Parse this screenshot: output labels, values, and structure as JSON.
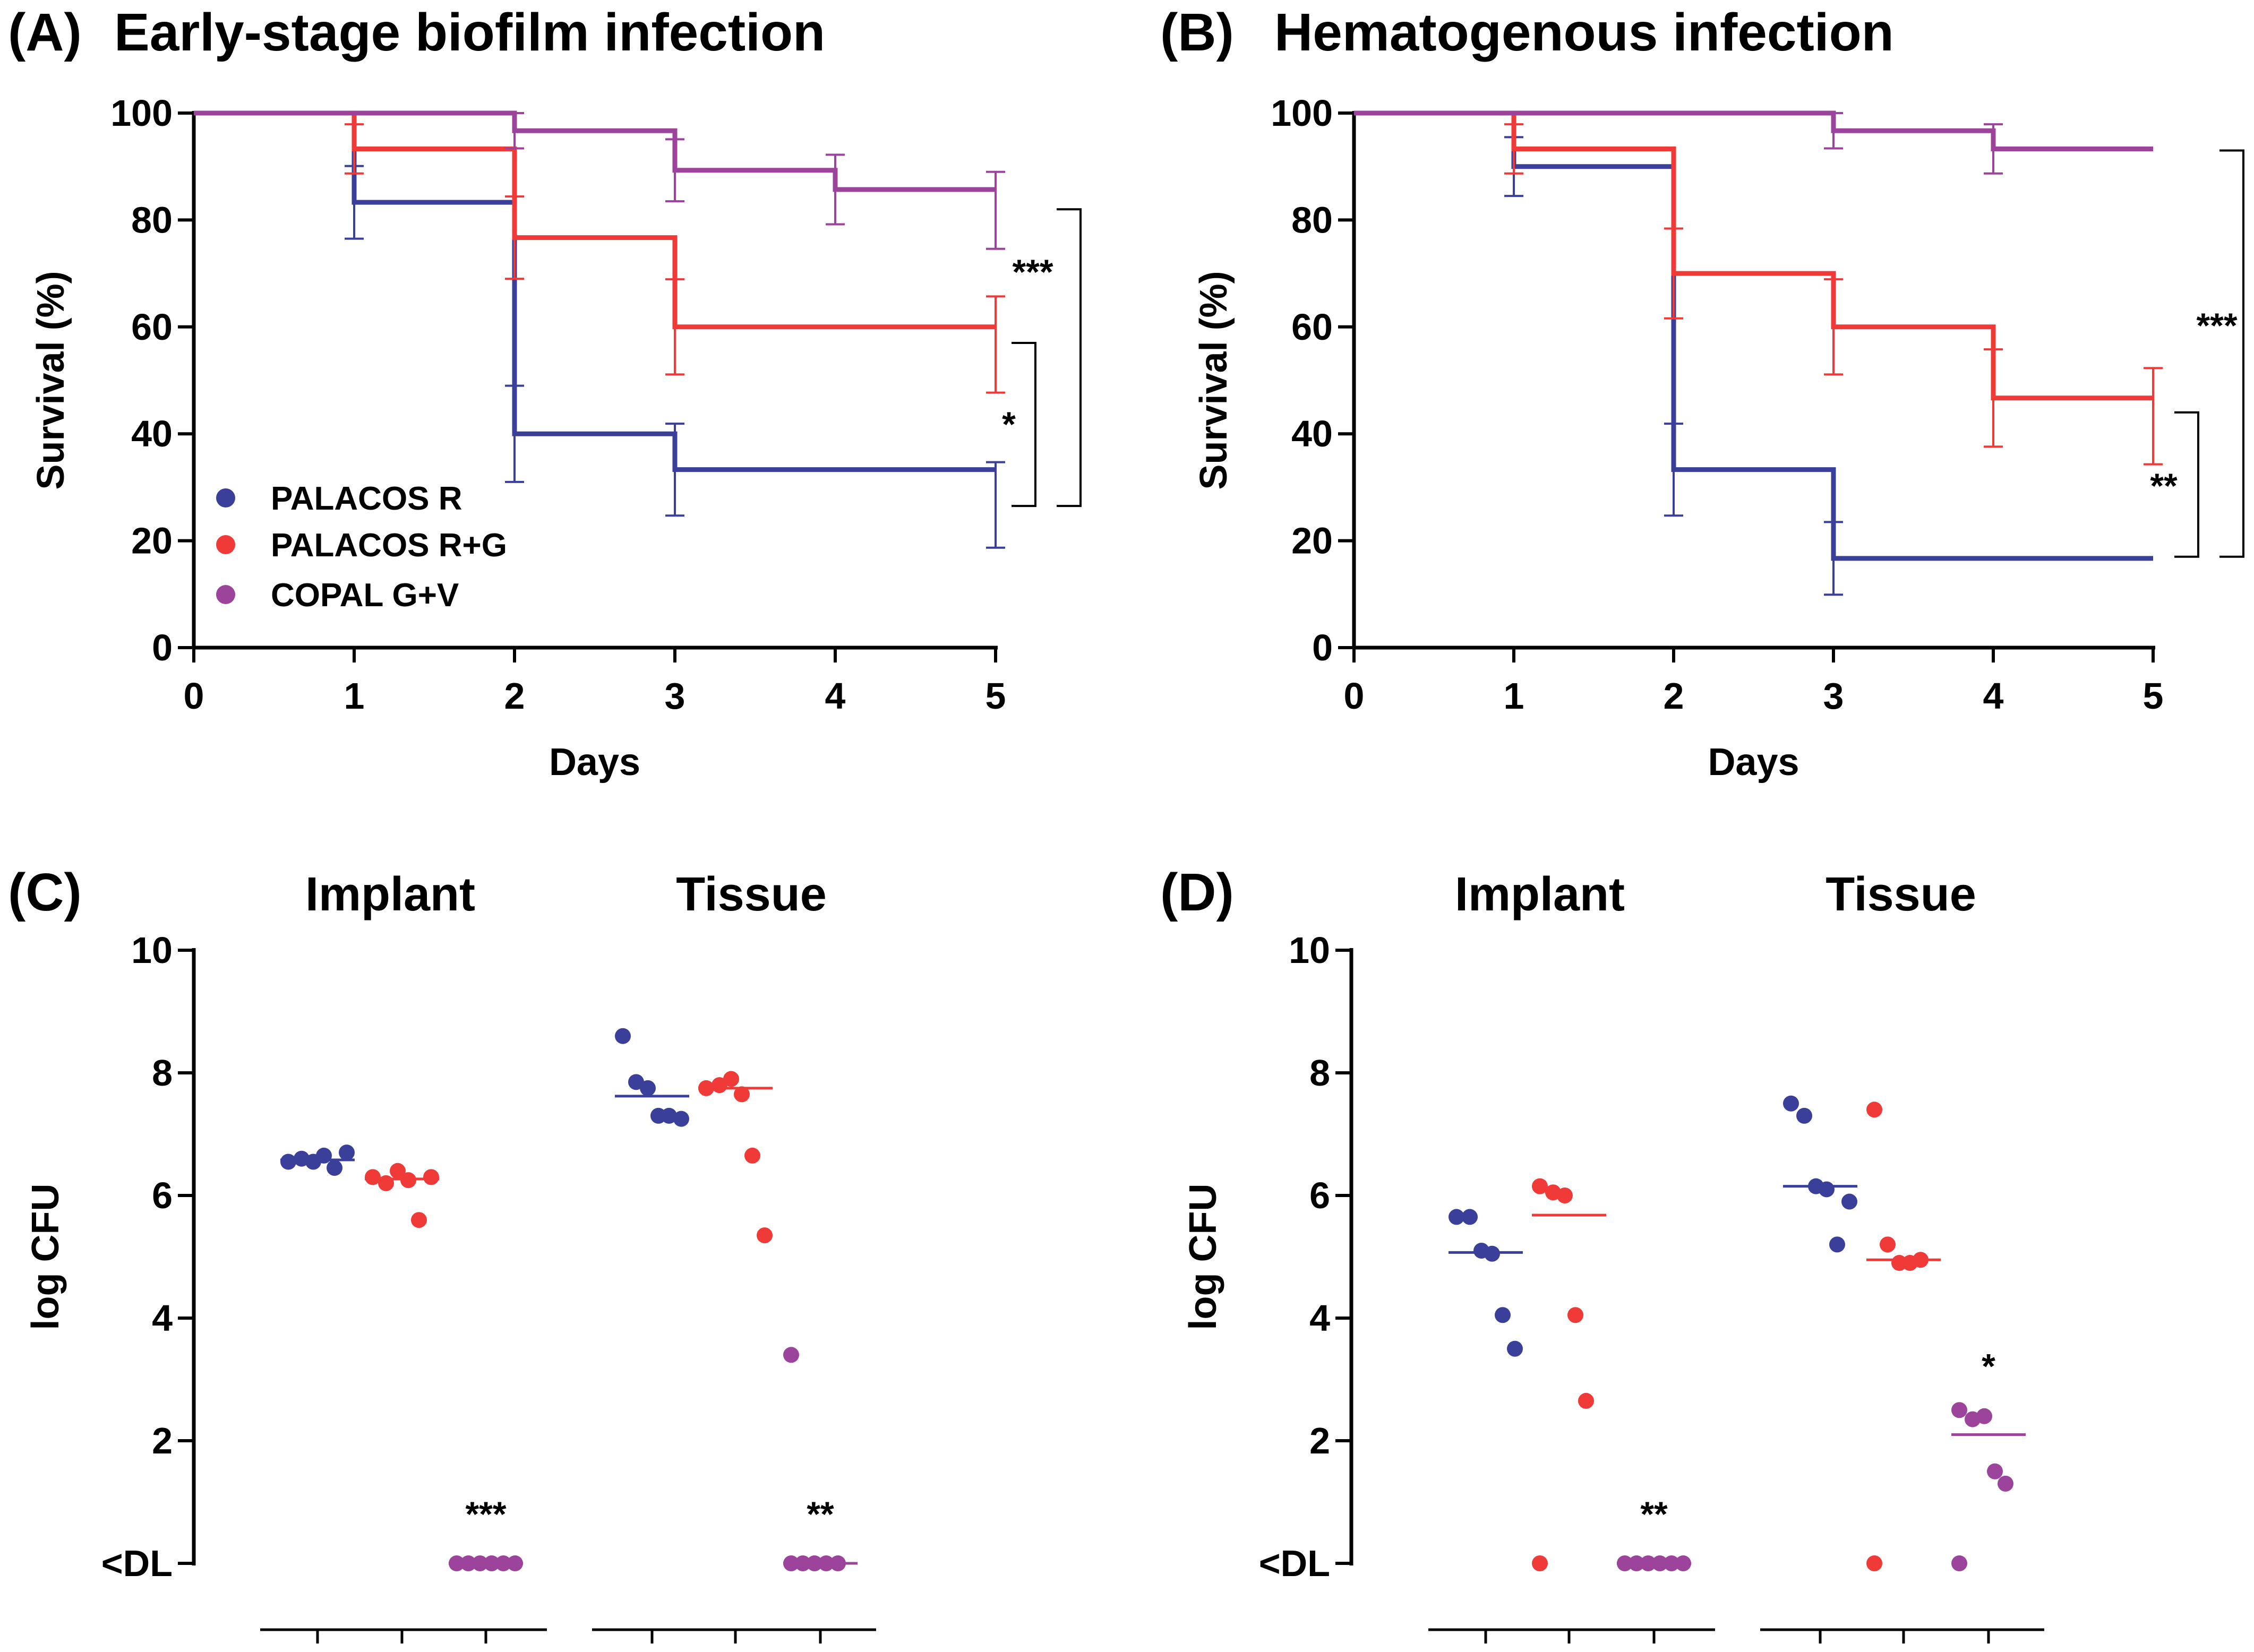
{
  "colors": {
    "palacos_r": "#3a3f9a",
    "palacos_rg": "#f03a38",
    "copal_gv": "#9c449c",
    "axis": "#000000"
  },
  "legend": {
    "palacos_r": "PALACOS R",
    "palacos_rg": "PALACOS R+G",
    "copal_gv": "COPAL G+V"
  },
  "chart_data": [
    {
      "id": "A",
      "type": "line",
      "subtype": "kaplan-meier",
      "label": "(A)",
      "title": "Early-stage biofilm infection",
      "xlabel": "Days",
      "ylabel": "Survival (%)",
      "xlim": [
        0,
        5
      ],
      "ylim": [
        0,
        100
      ],
      "xticks": [
        "0",
        "1",
        "2",
        "3",
        "4",
        "5"
      ],
      "yticks": [
        "0",
        "20",
        "40",
        "60",
        "80",
        "100"
      ],
      "legend_position": "lower-left",
      "series": [
        {
          "name": "PALACOS R",
          "color_key": "palacos_r",
          "steps": [
            [
              0,
              100
            ],
            [
              1,
              83.3
            ],
            [
              2,
              40
            ],
            [
              3,
              33.3
            ],
            [
              5,
              33.3
            ]
          ],
          "error_bars": [
            [
              1,
              83.3,
              6.8
            ],
            [
              2,
              40,
              9
            ],
            [
              3,
              33.3,
              8.6
            ],
            [
              5,
              26.7,
              8
            ]
          ]
        },
        {
          "name": "PALACOS R+G",
          "color_key": "palacos_rg",
          "steps": [
            [
              0,
              100
            ],
            [
              1,
              93.3
            ],
            [
              2,
              76.7
            ],
            [
              3,
              60
            ],
            [
              5,
              60
            ]
          ],
          "error_bars": [
            [
              1,
              93.3,
              4.6
            ],
            [
              2,
              76.7,
              7.7
            ],
            [
              3,
              60,
              8.9
            ],
            [
              5,
              56.7,
              9
            ]
          ]
        },
        {
          "name": "COPAL G+V",
          "color_key": "copal_gv",
          "steps": [
            [
              0,
              100
            ],
            [
              2,
              96.7
            ],
            [
              3,
              89.3
            ],
            [
              4,
              85.7
            ],
            [
              5,
              85.7
            ]
          ],
          "error_bars": [
            [
              2,
              96.7,
              3.3
            ],
            [
              3,
              89.3,
              5.8
            ],
            [
              4,
              85.7,
              6.5
            ],
            [
              5,
              81.8,
              7.2
            ]
          ]
        }
      ],
      "significance": [
        {
          "label": "***",
          "between": [
            "PALACOS R",
            "COPAL G+V"
          ]
        },
        {
          "label": "*",
          "between": [
            "PALACOS R",
            "PALACOS R+G"
          ]
        }
      ]
    },
    {
      "id": "B",
      "type": "line",
      "subtype": "kaplan-meier",
      "label": "(B)",
      "title": "Hematogenous infection",
      "xlabel": "Days",
      "ylabel": "Survival (%)",
      "xlim": [
        0,
        5
      ],
      "ylim": [
        0,
        100
      ],
      "xticks": [
        "0",
        "1",
        "2",
        "3",
        "4",
        "5"
      ],
      "yticks": [
        "0",
        "20",
        "40",
        "60",
        "80",
        "100"
      ],
      "series": [
        {
          "name": "PALACOS R",
          "color_key": "palacos_r",
          "steps": [
            [
              0,
              100
            ],
            [
              1,
              90
            ],
            [
              2,
              33.3
            ],
            [
              3,
              16.7
            ],
            [
              5,
              16.7
            ]
          ],
          "error_bars": [
            [
              1,
              90,
              5.5
            ],
            [
              2,
              33.3,
              8.6
            ],
            [
              3,
              16.7,
              6.8
            ]
          ]
        },
        {
          "name": "PALACOS R+G",
          "color_key": "palacos_rg",
          "steps": [
            [
              0,
              100
            ],
            [
              1,
              93.3
            ],
            [
              2,
              70
            ],
            [
              3,
              60
            ],
            [
              4,
              46.7
            ],
            [
              5,
              46.7
            ]
          ],
          "error_bars": [
            [
              1,
              93.3,
              4.6
            ],
            [
              2,
              70,
              8.4
            ],
            [
              3,
              60,
              8.9
            ],
            [
              4,
              46.7,
              9.1
            ],
            [
              5,
              43.3,
              9
            ]
          ]
        },
        {
          "name": "COPAL G+V",
          "color_key": "copal_gv",
          "steps": [
            [
              0,
              100
            ],
            [
              3,
              96.7
            ],
            [
              4,
              93.3
            ],
            [
              5,
              93.3
            ]
          ],
          "error_bars": [
            [
              3,
              96.7,
              3.3
            ],
            [
              4,
              93.3,
              4.6
            ]
          ]
        }
      ],
      "significance": [
        {
          "label": "***",
          "between": [
            "PALACOS R",
            "COPAL G+V"
          ]
        },
        {
          "label": "**",
          "between": [
            "PALACOS R",
            "PALACOS R+G"
          ]
        }
      ]
    },
    {
      "id": "C",
      "type": "scatter",
      "subtype": "dot-plot",
      "label": "(C)",
      "ylabel": "log CFU",
      "ylim": [
        0,
        10
      ],
      "yticks": [
        {
          "label": "<DL",
          "value": 0
        },
        {
          "label": "2",
          "value": 2
        },
        {
          "label": "4",
          "value": 4
        },
        {
          "label": "6",
          "value": 6
        },
        {
          "label": "8",
          "value": 8
        },
        {
          "label": "10",
          "value": 10
        }
      ],
      "groups": [
        {
          "name": "Implant",
          "series": [
            {
              "name": "PALACOS R",
              "color_key": "palacos_r",
              "values": [
                6.55,
                6.6,
                6.55,
                6.65,
                6.45,
                6.7
              ],
              "median": 6.58,
              "star": ""
            },
            {
              "name": "PALACOS R+G",
              "color_key": "palacos_rg",
              "values": [
                6.3,
                6.2,
                6.4,
                6.25,
                5.6,
                6.3
              ],
              "median": 6.27,
              "star": ""
            },
            {
              "name": "COPAL G+V",
              "color_key": "copal_gv",
              "values": [
                0,
                0,
                0,
                0,
                0,
                0
              ],
              "median": 0,
              "star": "***"
            }
          ]
        },
        {
          "name": "Tissue",
          "series": [
            {
              "name": "PALACOS R",
              "color_key": "palacos_r",
              "values": [
                8.6,
                7.85,
                7.75,
                7.3,
                7.3,
                7.25
              ],
              "median": 7.62,
              "star": ""
            },
            {
              "name": "PALACOS R+G",
              "color_key": "palacos_rg",
              "values": [
                7.75,
                7.8,
                7.9,
                7.65,
                6.65,
                5.35
              ],
              "median": 7.75,
              "star": ""
            },
            {
              "name": "COPAL G+V",
              "color_key": "copal_gv",
              "values": [
                3.4,
                0,
                0,
                0,
                0,
                0
              ],
              "median": 0,
              "star": "**"
            }
          ]
        }
      ]
    },
    {
      "id": "D",
      "type": "scatter",
      "subtype": "dot-plot",
      "label": "(D)",
      "ylabel": "log CFU",
      "ylim": [
        0,
        10
      ],
      "yticks": [
        {
          "label": "<DL",
          "value": 0
        },
        {
          "label": "2",
          "value": 2
        },
        {
          "label": "4",
          "value": 4
        },
        {
          "label": "6",
          "value": 6
        },
        {
          "label": "8",
          "value": 8
        },
        {
          "label": "10",
          "value": 10
        }
      ],
      "groups": [
        {
          "name": "Implant",
          "series": [
            {
              "name": "PALACOS R",
              "color_key": "palacos_r",
              "values": [
                5.65,
                5.65,
                5.1,
                5.05,
                4.05,
                3.5
              ],
              "median": 5.07,
              "star": ""
            },
            {
              "name": "PALACOS R+G",
              "color_key": "palacos_rg",
              "values": [
                6.15,
                6.05,
                6.0,
                4.05,
                2.65,
                0
              ],
              "median": 5.68,
              "star": ""
            },
            {
              "name": "COPAL G+V",
              "color_key": "copal_gv",
              "values": [
                0,
                0,
                0,
                0,
                0,
                0
              ],
              "median": 0,
              "star": "**"
            }
          ]
        },
        {
          "name": "Tissue",
          "series": [
            {
              "name": "PALACOS R",
              "color_key": "palacos_r",
              "values": [
                7.5,
                7.3,
                6.15,
                6.1,
                5.2,
                5.9
              ],
              "median": 6.15,
              "star": ""
            },
            {
              "name": "PALACOS R+G",
              "color_key": "palacos_rg",
              "values": [
                7.4,
                5.2,
                4.9,
                4.9,
                4.95,
                0
              ],
              "median": 4.95,
              "star": ""
            },
            {
              "name": "COPAL G+V",
              "color_key": "copal_gv",
              "values": [
                2.5,
                2.35,
                2.4,
                1.5,
                1.3,
                0
              ],
              "median": 2.1,
              "star": "*"
            }
          ]
        }
      ]
    }
  ]
}
